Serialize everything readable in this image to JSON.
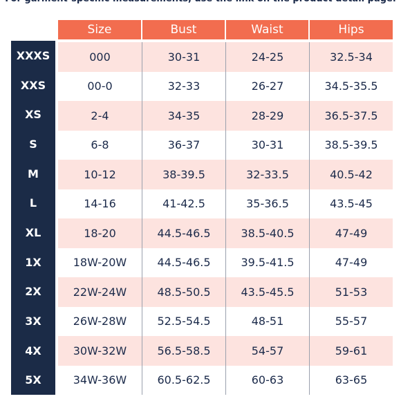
{
  "note": "For garment-specific measurements, use the link on the product detail page.",
  "headers": [
    "Size",
    "Bust",
    "Waist",
    "Hips"
  ],
  "rows": [
    {
      "label": "XXXS",
      "size": "000",
      "bust": "30-31",
      "waist": "24-25",
      "hips": "32.5-34"
    },
    {
      "label": "XXS",
      "size": "00-0",
      "bust": "32-33",
      "waist": "26-27",
      "hips": "34.5-35.5"
    },
    {
      "label": "XS",
      "size": "2-4",
      "bust": "34-35",
      "waist": "28-29",
      "hips": "36.5-37.5"
    },
    {
      "label": "S",
      "size": "6-8",
      "bust": "36-37",
      "waist": "30-31",
      "hips": "38.5-39.5"
    },
    {
      "label": "M",
      "size": "10-12",
      "bust": "38-39.5",
      "waist": "32-33.5",
      "hips": "40.5-42"
    },
    {
      "label": "L",
      "size": "14-16",
      "bust": "41-42.5",
      "waist": "35-36.5",
      "hips": "43.5-45"
    },
    {
      "label": "XL",
      "size": "18-20",
      "bust": "44.5-46.5",
      "waist": "38.5-40.5",
      "hips": "47-49"
    },
    {
      "label": "1X",
      "size": "18W-20W",
      "bust": "44.5-46.5",
      "waist": "39.5-41.5",
      "hips": "47-49"
    },
    {
      "label": "2X",
      "size": "22W-24W",
      "bust": "48.5-50.5",
      "waist": "43.5-45.5",
      "hips": "51-53"
    },
    {
      "label": "3X",
      "size": "26W-28W",
      "bust": "52.5-54.5",
      "waist": "48-51",
      "hips": "55-57"
    },
    {
      "label": "4X",
      "size": "30W-32W",
      "bust": "56.5-58.5",
      "waist": "54-57",
      "hips": "59-61"
    },
    {
      "label": "5X",
      "size": "34W-36W",
      "bust": "60.5-62.5",
      "waist": "60-63",
      "hips": "63-65"
    }
  ],
  "colors": {
    "header_bg": "#f26d4f",
    "sidebar_bg": "#1b2b47",
    "row_tint": "#fde3df",
    "text": "#1b2a4a"
  }
}
